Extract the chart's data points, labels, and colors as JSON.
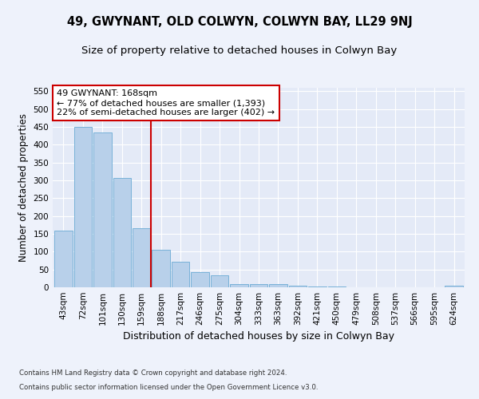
{
  "title": "49, GWYNANT, OLD COLWYN, COLWYN BAY, LL29 9NJ",
  "subtitle": "Size of property relative to detached houses in Colwyn Bay",
  "xlabel": "Distribution of detached houses by size in Colwyn Bay",
  "ylabel": "Number of detached properties",
  "categories": [
    "43sqm",
    "72sqm",
    "101sqm",
    "130sqm",
    "159sqm",
    "188sqm",
    "217sqm",
    "246sqm",
    "275sqm",
    "304sqm",
    "333sqm",
    "363sqm",
    "392sqm",
    "421sqm",
    "450sqm",
    "479sqm",
    "508sqm",
    "537sqm",
    "566sqm",
    "595sqm",
    "624sqm"
  ],
  "values": [
    160,
    450,
    435,
    308,
    165,
    105,
    72,
    43,
    33,
    10,
    10,
    8,
    5,
    3,
    2,
    1,
    1,
    1,
    1,
    1,
    4
  ],
  "bar_color": "#b8d0ea",
  "bar_edge_color": "#6aaad4",
  "vline_x": 4.5,
  "vline_color": "#cc0000",
  "annotation_text": "49 GWYNANT: 168sqm\n← 77% of detached houses are smaller (1,393)\n22% of semi-detached houses are larger (402) →",
  "annotation_box_color": "#ffffff",
  "annotation_box_edge": "#cc0000",
  "ylim": [
    0,
    560
  ],
  "yticks": [
    0,
    50,
    100,
    150,
    200,
    250,
    300,
    350,
    400,
    450,
    500,
    550
  ],
  "title_fontsize": 10.5,
  "subtitle_fontsize": 9.5,
  "xlabel_fontsize": 9,
  "ylabel_fontsize": 8.5,
  "tick_fontsize": 7.5,
  "ann_fontsize": 8,
  "footer_line1": "Contains HM Land Registry data © Crown copyright and database right 2024.",
  "footer_line2": "Contains public sector information licensed under the Open Government Licence v3.0.",
  "background_color": "#eef2fb",
  "plot_bg_color": "#e4eaf7"
}
